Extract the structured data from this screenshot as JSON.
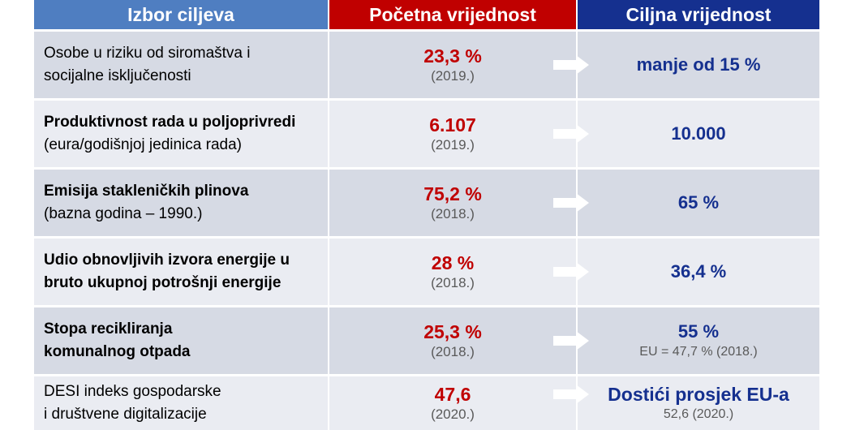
{
  "headers": [
    "Izbor ciljeva",
    "Početna vrijednost",
    "Ciljna vrijednost"
  ],
  "rows": [
    {
      "goal_line1": "Osobe u riziku od siromaštva i",
      "goal_line2": "socijalne isključenosti",
      "initial": "23,3 %",
      "year": "(2019.)",
      "target": "manje od 15 %",
      "target_note": ""
    },
    {
      "goal_line1": "Produktivnost rada u poljoprivredi",
      "goal_line2": "(eura/godišnjoj jedinica rada)",
      "initial": "6.107",
      "year": "(2019.)",
      "target": "10.000",
      "target_note": ""
    },
    {
      "goal_line1": "Emisija stakleničkih plinova",
      "goal_line2": "(bazna godina – 1990.)",
      "initial": "75,2 %",
      "year": "(2018.)",
      "target": "65 %",
      "target_note": ""
    },
    {
      "goal_line1": "Udio obnovljivih izvora energije u",
      "goal_line2": "bruto ukupnoj potrošnji energije",
      "initial": "28 %",
      "year": "(2018.)",
      "target": "36,4 %",
      "target_note": ""
    },
    {
      "goal_line1": "Stopa recikliranja",
      "goal_line2": "komunalnog otpada",
      "initial": "25,3 %",
      "year": "(2018.)",
      "target": "55 %",
      "target_note": "EU = 47,7 % (2018.)"
    },
    {
      "goal_line1": "DESI indeks gospodarske",
      "goal_line2": "i društvene digitalizacije",
      "initial": "47,6",
      "year": "(2020.)",
      "target": "Dostići prosjek EU-a",
      "target_note": "52,6 (2020.)"
    }
  ]
}
